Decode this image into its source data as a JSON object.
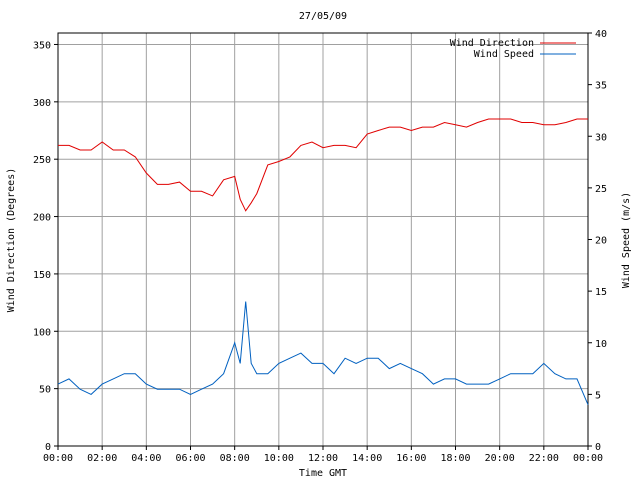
{
  "chart_data": {
    "type": "line",
    "title": "27/05/09",
    "xlabel": "Time GMT",
    "ylabel_left": "Wind Direction (Degrees)",
    "ylabel_right": "Wind Speed (m/s)",
    "x_ticks": [
      "00:00",
      "02:00",
      "04:00",
      "06:00",
      "08:00",
      "10:00",
      "12:00",
      "14:00",
      "16:00",
      "18:00",
      "20:00",
      "22:00",
      "00:00"
    ],
    "y_left_ticks": [
      "0",
      "50",
      "100",
      "150",
      "200",
      "250",
      "300",
      "350"
    ],
    "y_right_ticks": [
      "0",
      "5",
      "10",
      "15",
      "20",
      "25",
      "30",
      "35",
      "40"
    ],
    "y_left_lim": [
      0,
      360
    ],
    "y_right_lim": [
      0,
      40
    ],
    "x_range_hours": [
      0,
      24
    ],
    "grid": true,
    "legend_position": "top-right",
    "series": [
      {
        "name": "Wind Direction",
        "axis": "left",
        "color": "#e00000",
        "x": [
          0,
          0.5,
          1,
          1.5,
          2,
          2.5,
          3,
          3.5,
          4,
          4.5,
          5,
          5.5,
          6,
          6.5,
          7,
          7.5,
          8,
          8.25,
          8.5,
          8.75,
          9,
          9.5,
          10,
          10.5,
          11,
          11.5,
          12,
          12.5,
          13,
          13.5,
          14,
          14.5,
          15,
          15.5,
          16,
          16.5,
          17,
          17.5,
          18,
          18.5,
          19,
          19.5,
          20,
          20.5,
          21,
          21.5,
          22,
          22.5,
          23,
          23.5,
          24
        ],
        "values": [
          262,
          262,
          258,
          258,
          265,
          258,
          258,
          252,
          238,
          228,
          228,
          230,
          222,
          222,
          218,
          232,
          235,
          215,
          205,
          212,
          220,
          245,
          248,
          252,
          262,
          265,
          260,
          262,
          262,
          260,
          272,
          275,
          278,
          278,
          275,
          278,
          278,
          282,
          280,
          278,
          282,
          285,
          285,
          285,
          282,
          282,
          280,
          280,
          282,
          285,
          285
        ]
      },
      {
        "name": "Wind Speed",
        "axis": "right",
        "color": "#0060c0",
        "x": [
          0,
          0.5,
          1,
          1.5,
          2,
          2.5,
          3,
          3.5,
          4,
          4.5,
          5,
          5.5,
          6,
          6.5,
          7,
          7.5,
          8,
          8.25,
          8.5,
          8.75,
          9,
          9.5,
          10,
          10.5,
          11,
          11.5,
          12,
          12.5,
          13,
          13.5,
          14,
          14.5,
          15,
          15.5,
          16,
          16.5,
          17,
          17.5,
          18,
          18.5,
          19,
          19.5,
          20,
          20.5,
          21,
          21.5,
          22,
          22.5,
          23,
          23.5,
          24
        ],
        "values": [
          6,
          6.5,
          5.5,
          5,
          6,
          6.5,
          7,
          7,
          6,
          5.5,
          5.5,
          5.5,
          5,
          5.5,
          6,
          7,
          10,
          8,
          14,
          8,
          7,
          7,
          8,
          8.5,
          9,
          8,
          8,
          7,
          8.5,
          8,
          8.5,
          8.5,
          7.5,
          8,
          7.5,
          7,
          6,
          6.5,
          6.5,
          6,
          6,
          6,
          6.5,
          7,
          7,
          7,
          8,
          7,
          6.5,
          6.5,
          4
        ]
      }
    ]
  }
}
